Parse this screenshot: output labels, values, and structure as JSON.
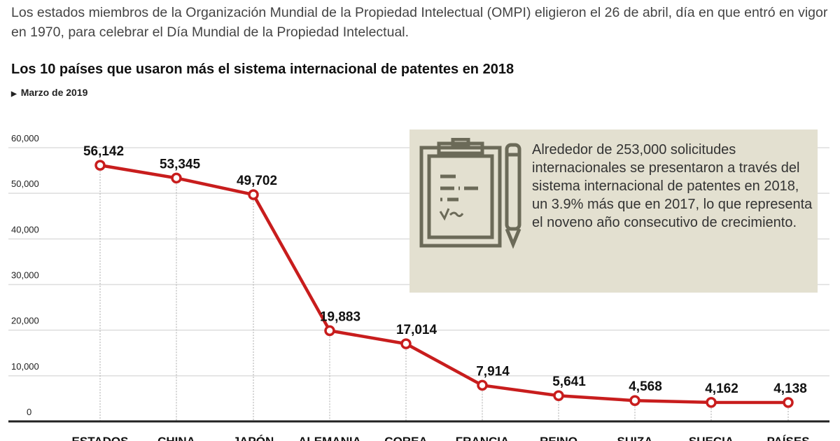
{
  "intro": "Los estados miembros de la Organización Mundial de la Propiedad Intelectual (OMPI) eligieron el 26 de abril, día en que entró en vigor en 1970, para celebrar el Día Mundial de la Propiedad Intelectual.",
  "note": {
    "icon": "clipboard-pencil-icon",
    "text": "Alrededor de 253,000 solicitudes internacionales se presentaron a través del sistema internacional de patentes en 2018, un 3.9% más que en 2017, lo que representa el noveno año consecutivo de crecimiento."
  },
  "chart_data": {
    "type": "line",
    "title": "Los 10 países que usaron más el sistema internacional de patentes en 2018",
    "subtitle": "Marzo de 2019",
    "categories": [
      "ESTADOS",
      "CHINA",
      "JAPÓN",
      "ALEMANIA",
      "COREA",
      "FRANCIA",
      "REINO",
      "SUIZA",
      "SUECIA",
      "PAÍSES"
    ],
    "values": [
      56142,
      53345,
      49702,
      19883,
      17014,
      7914,
      5641,
      4568,
      4162,
      4138
    ],
    "value_labels": [
      "56,142",
      "53,345",
      "49,702",
      "19,883",
      "17,014",
      "7,914",
      "5,641",
      "4,568",
      "4,162",
      "4,138"
    ],
    "yticks": [
      "0",
      "10,000",
      "20,000",
      "30,000",
      "40,000",
      "50,000",
      "60,000"
    ],
    "ylim": [
      0,
      60000
    ],
    "xlabel": "",
    "ylabel": "",
    "grid": true,
    "line_color": "#c81d1d"
  }
}
